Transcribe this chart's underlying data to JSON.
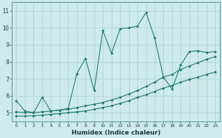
{
  "xlabel": "Humidex (Indice chaleur)",
  "bg_color": "#ceeaea",
  "grid_color": "#aed4d4",
  "line_color": "#1a7a6a",
  "xlim": [
    -0.5,
    23.5
  ],
  "ylim": [
    4.5,
    11.5
  ],
  "xticks": [
    0,
    1,
    2,
    3,
    4,
    5,
    6,
    7,
    8,
    9,
    10,
    11,
    12,
    13,
    14,
    15,
    16,
    17,
    18,
    19,
    20,
    21,
    22,
    23
  ],
  "yticks": [
    5,
    6,
    7,
    8,
    9,
    10,
    11
  ],
  "line1_x": [
    0,
    1,
    2,
    3,
    4,
    5,
    6,
    7,
    8,
    9,
    10,
    11,
    12,
    13,
    14,
    15,
    16,
    17,
    18,
    19,
    20,
    21,
    22,
    23
  ],
  "line1_y": [
    5.7,
    5.1,
    5.0,
    5.9,
    5.1,
    5.15,
    5.25,
    7.3,
    8.2,
    6.3,
    9.85,
    8.5,
    9.95,
    10.0,
    10.1,
    10.9,
    9.4,
    7.1,
    6.4,
    7.8,
    8.6,
    8.65,
    8.55,
    8.6
  ],
  "line2_x": [
    0,
    1,
    2,
    3,
    4,
    5,
    6,
    7,
    8,
    9,
    10,
    11,
    12,
    13,
    14,
    15,
    16,
    17,
    18,
    19,
    20,
    21,
    22,
    23
  ],
  "line2_y": [
    5.05,
    5.0,
    5.0,
    5.05,
    5.1,
    5.15,
    5.2,
    5.3,
    5.4,
    5.5,
    5.6,
    5.75,
    5.9,
    6.1,
    6.3,
    6.55,
    6.8,
    7.1,
    7.25,
    7.55,
    7.75,
    7.95,
    8.15,
    8.3
  ],
  "line3_x": [
    0,
    1,
    2,
    3,
    4,
    5,
    6,
    7,
    8,
    9,
    10,
    11,
    12,
    13,
    14,
    15,
    16,
    17,
    18,
    19,
    20,
    21,
    22,
    23
  ],
  "line3_y": [
    4.8,
    4.8,
    4.82,
    4.85,
    4.9,
    4.95,
    5.0,
    5.05,
    5.1,
    5.2,
    5.3,
    5.4,
    5.55,
    5.7,
    5.9,
    6.05,
    6.25,
    6.45,
    6.6,
    6.8,
    6.95,
    7.1,
    7.25,
    7.4
  ]
}
